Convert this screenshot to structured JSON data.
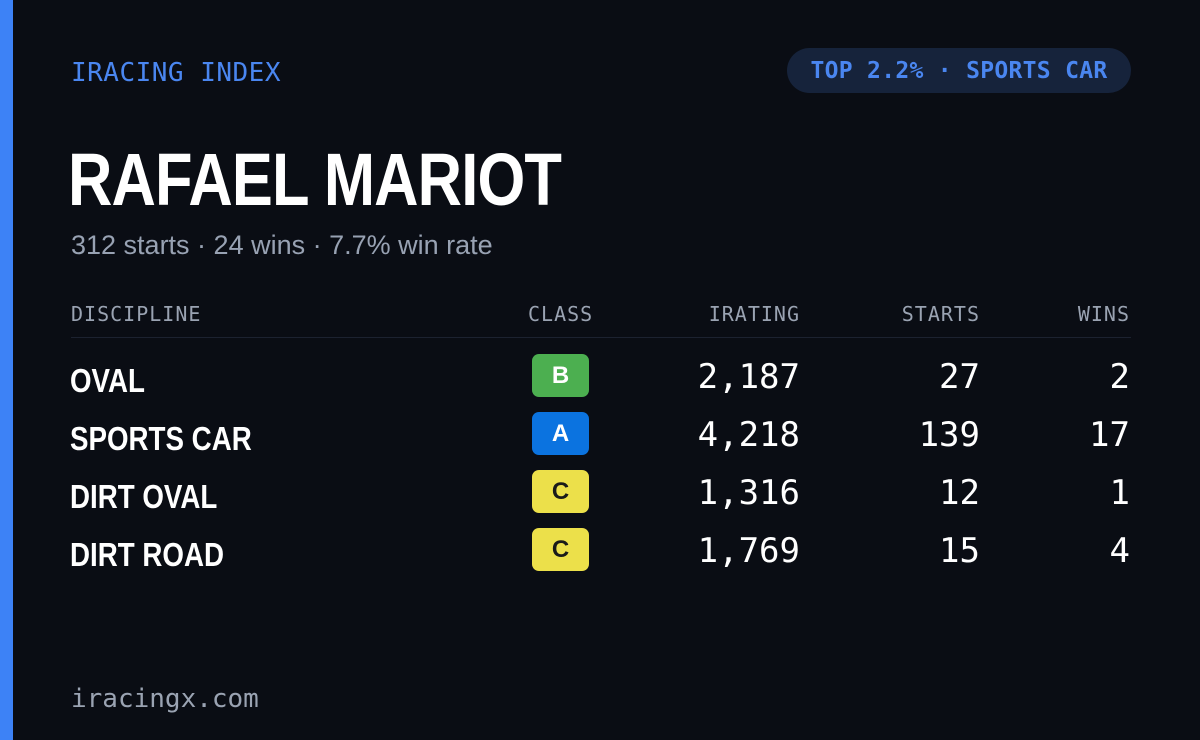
{
  "colors": {
    "accent": "#3d82f6",
    "class_b": "#4caf50",
    "class_a": "#0b73e0",
    "class_c": "#ece04a"
  },
  "brand": "IRACING INDEX",
  "badge": "TOP 2.2% · SPORTS CAR",
  "driver": {
    "name": "RAFAEL MARIOT",
    "summary": "312 starts · 24 wins · 7.7% win rate"
  },
  "table": {
    "headers": {
      "discipline": "DISCIPLINE",
      "class": "CLASS",
      "irating": "IRATING",
      "starts": "STARTS",
      "wins": "WINS"
    },
    "rows": [
      {
        "discipline": "OVAL",
        "class": "B",
        "class_color": "#4caf50",
        "class_text_color": "#ffffff",
        "irating": "2,187",
        "starts": "27",
        "wins": "2"
      },
      {
        "discipline": "SPORTS CAR",
        "class": "A",
        "class_color": "#0b73e0",
        "class_text_color": "#ffffff",
        "irating": "4,218",
        "starts": "139",
        "wins": "17"
      },
      {
        "discipline": "DIRT OVAL",
        "class": "C",
        "class_color": "#ece04a",
        "class_text_color": "#1a1a1a",
        "irating": "1,316",
        "starts": "12",
        "wins": "1"
      },
      {
        "discipline": "DIRT ROAD",
        "class": "C",
        "class_color": "#ece04a",
        "class_text_color": "#1a1a1a",
        "irating": "1,769",
        "starts": "15",
        "wins": "4"
      }
    ]
  },
  "footer": "iracingx.com"
}
